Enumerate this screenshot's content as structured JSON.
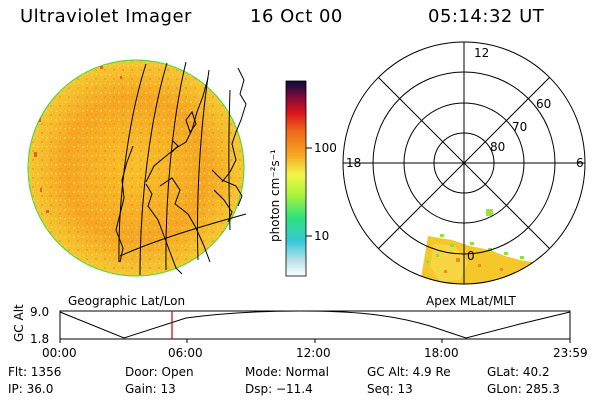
{
  "header": {
    "title": "Ultraviolet Imager",
    "date": "16 Oct 00",
    "time": "05:14:32 UT"
  },
  "colorbar": {
    "unit_label": "photon cm⁻²s⁻¹",
    "ticks": [
      "100",
      "10"
    ]
  },
  "polar_plot": {
    "mlt_labels": {
      "top": "12",
      "left": "18",
      "right": "6",
      "bottom": "0"
    },
    "lat_labels": [
      "60",
      "70",
      "80"
    ]
  },
  "panel_labels": {
    "geo": "Geographic Lat/Lon",
    "apex": "Apex MLat/MLT"
  },
  "altitude_plot": {
    "ylabel": "GC Alt",
    "ymax": "9.0",
    "ymin": "1.8",
    "x_ticks": [
      "00:00",
      "06:00",
      "12:00",
      "18:00",
      "23:59"
    ],
    "marker_time": "05:14"
  },
  "info": {
    "flt": "Flt: 1356",
    "door": "Door: Open",
    "mode": "Mode: Normal",
    "gc_alt": "GC Alt: 4.9 Re",
    "glat": "GLat:  40.2",
    "ip": "IP: 36.0",
    "gain": "Gain: 13",
    "dsp": "Dsp:  −11.4",
    "seq": "Seq: 13",
    "glon": "GLon: 285.3"
  },
  "colors": {
    "earth_orange": "#f6a623",
    "earth_yellow": "#f5d226",
    "marker_red": "#cc0000"
  }
}
